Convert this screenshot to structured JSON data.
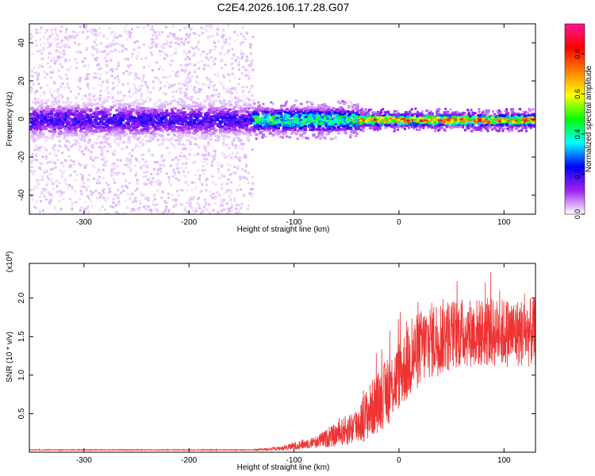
{
  "title": "C2E4.2026.106.17.28.G07",
  "chart_data": [
    {
      "type": "heatmap",
      "name": "spectrogram",
      "xlabel": "Height of straight line (km)",
      "ylabel": "Frequency (Hz)",
      "xlim": [
        -352,
        130
      ],
      "ylim": [
        -50,
        50
      ],
      "x_ticks": [
        -300,
        -200,
        -100,
        0,
        100
      ],
      "x_tick_labels": [
        "-300",
        "-200",
        "-100",
        "0",
        "100"
      ],
      "y_ticks": [
        -40,
        -20,
        0,
        20,
        40
      ],
      "y_tick_labels": [
        "-40",
        "-20",
        "0",
        "20",
        "40"
      ],
      "colorbar": {
        "label": "Normalized spectral amplitude",
        "range": [
          0,
          0.95
        ],
        "ticks": [
          0,
          0.2,
          0.4,
          0.6,
          0.8
        ],
        "tick_labels": [
          "0.0",
          "0.2",
          "0.4",
          "0.6",
          "0.8"
        ],
        "colors": [
          "#ffffff",
          "#a020f0",
          "#0000ff",
          "#00ffff",
          "#00ff00",
          "#ffff00",
          "#ff8000",
          "#ff0000",
          "#ff1493"
        ]
      },
      "bands": [
        {
          "x_range": [
            -352,
            -140
          ],
          "center_hz": 0,
          "core_halfwidth_hz": 8,
          "scatter_halfwidth_hz": 50,
          "peak_amplitude": 0.25
        },
        {
          "x_range": [
            -140,
            -40
          ],
          "center_hz": 0,
          "core_halfwidth_hz": 6,
          "scatter_halfwidth_hz": 10,
          "peak_amplitude": 0.55
        },
        {
          "x_range": [
            -40,
            130
          ],
          "center_hz": 0,
          "core_halfwidth_hz": 3,
          "scatter_halfwidth_hz": 6,
          "peak_amplitude": 0.9
        }
      ]
    },
    {
      "type": "line",
      "name": "snr",
      "xlabel": "Height of straight line (km)",
      "ylabel": "SNR (10 * v/v)",
      "scale_label": "(x10",
      "scale_exponent": "4",
      "scale_close": ")",
      "xlim": [
        -352,
        130
      ],
      "ylim": [
        0,
        2.45
      ],
      "x_ticks": [
        -300,
        -200,
        -100,
        0,
        100
      ],
      "x_tick_labels": [
        "-300",
        "-200",
        "-100",
        "0",
        "100"
      ],
      "y_ticks": [
        0.5,
        1.0,
        1.5,
        2.0
      ],
      "y_tick_labels": [
        "0.5",
        "1.0",
        "1.5",
        "2.0"
      ],
      "series": [
        {
          "name": "SNR",
          "color": "#ee3333",
          "x": [
            -352,
            -300,
            -200,
            -140,
            -110,
            -100,
            -80,
            -60,
            -40,
            -30,
            -20,
            -10,
            0,
            10,
            20,
            30,
            40,
            60,
            80,
            100,
            120,
            130
          ],
          "y": [
            0.03,
            0.03,
            0.03,
            0.03,
            0.05,
            0.08,
            0.13,
            0.22,
            0.35,
            0.5,
            0.65,
            0.8,
            1.0,
            1.18,
            1.35,
            1.45,
            1.5,
            1.55,
            1.55,
            1.55,
            1.55,
            1.55
          ],
          "noise_amplitude": [
            0.005,
            0.005,
            0.005,
            0.005,
            0.03,
            0.05,
            0.08,
            0.15,
            0.25,
            0.35,
            0.4,
            0.45,
            0.45,
            0.5,
            0.5,
            0.5,
            0.5,
            0.45,
            0.45,
            0.45,
            0.45,
            0.45
          ],
          "peak_max": 2.4
        }
      ]
    }
  ]
}
